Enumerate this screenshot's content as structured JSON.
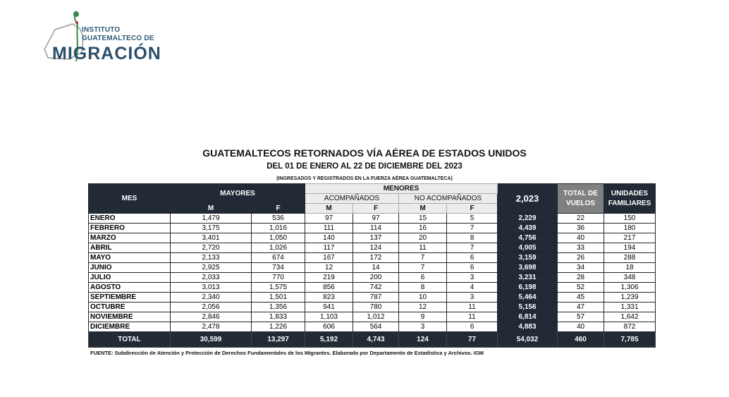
{
  "logo": {
    "line1": "INSTITUTO",
    "line2": "GUATEMALTECO DE",
    "line3": "MIGRACIÓN"
  },
  "title": "GUATEMALTECOS RETORNADOS VÍA AÉREA DE ESTADOS UNIDOS",
  "subtitle": "DEL 01 DE ENERO AL 22 DE DICIEMBRE DEL 2023",
  "note": "(INGRESADOS Y REGISTRADOS EN LA FUERZA AÉREA GUATEMALTECA)",
  "headers": {
    "mes": "MES",
    "mayores": "MAYORES",
    "menores": "MENORES",
    "acompanados": "ACOMPAÑADOS",
    "no_acompanados": "NO ACOMPAÑADOS",
    "m": "M",
    "f": "F",
    "year": "2,023",
    "vuelos": "TOTAL DE VUELOS",
    "unidades": "UNIDADES FAMILIARES"
  },
  "rows": [
    [
      "ENERO",
      "1,479",
      "536",
      "97",
      "97",
      "15",
      "5",
      "2,229",
      "22",
      "150"
    ],
    [
      "FEBRERO",
      "3,175",
      "1,016",
      "111",
      "114",
      "16",
      "7",
      "4,439",
      "36",
      "180"
    ],
    [
      "MARZO",
      "3,401",
      "1,050",
      "140",
      "137",
      "20",
      "8",
      "4,756",
      "40",
      "217"
    ],
    [
      "ABRIL",
      "2,720",
      "1,026",
      "117",
      "124",
      "11",
      "7",
      "4,005",
      "33",
      "194"
    ],
    [
      "MAYO",
      "2,133",
      "674",
      "167",
      "172",
      "7",
      "6",
      "3,159",
      "26",
      "288"
    ],
    [
      "JUNIO",
      "2,925",
      "734",
      "12",
      "14",
      "7",
      "6",
      "3,698",
      "34",
      "18"
    ],
    [
      "JULIO",
      "2,033",
      "770",
      "219",
      "200",
      "6",
      "3",
      "3,231",
      "28",
      "348"
    ],
    [
      "AGOSTO",
      "3,013",
      "1,575",
      "856",
      "742",
      "8",
      "4",
      "6,198",
      "52",
      "1,306"
    ],
    [
      "SEPTIEMBRE",
      "2,340",
      "1,501",
      "823",
      "787",
      "10",
      "3",
      "5,464",
      "45",
      "1,239"
    ],
    [
      "OCTUBRE",
      "2,056",
      "1,356",
      "941",
      "780",
      "12",
      "11",
      "5,156",
      "47",
      "1,331"
    ],
    [
      "NOVIEMBRE",
      "2,846",
      "1,833",
      "1,103",
      "1,012",
      "9",
      "11",
      "6,814",
      "57",
      "1,642"
    ],
    [
      "DICIEMBRE",
      "2,478",
      "1,226",
      "606",
      "564",
      "3",
      "6",
      "4,883",
      "40",
      "872"
    ]
  ],
  "total": [
    "TOTAL",
    "30,599",
    "13,297",
    "5,192",
    "4,743",
    "124",
    "77",
    "54,032",
    "460",
    "7,785"
  ],
  "source": "FUENTE:  Subdirección de Atención y Protección de Derechos Fundamentales de los Migrantes. Elaborado por Departamento de Estadística y Archivos. IGM"
}
